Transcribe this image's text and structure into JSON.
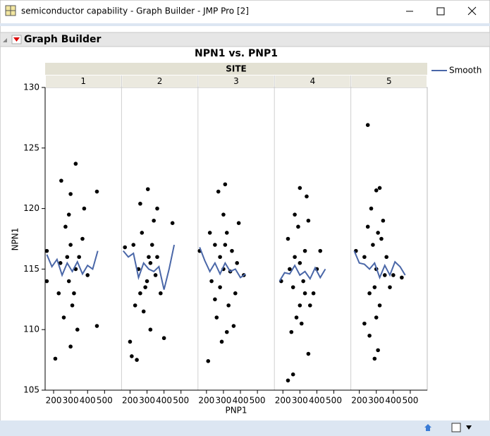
{
  "window": {
    "title": "semiconductor capability - Graph Builder - JMP Pro [2]"
  },
  "outline": {
    "title": "Graph Builder"
  },
  "chart_data": {
    "type": "scatter",
    "title": "NPN1 vs. PNP1",
    "facet_title": "SITE",
    "x_label": "PNP1",
    "y_label": "NPN1",
    "xlim": [
      150,
      600
    ],
    "xticks": [
      200,
      300,
      400,
      500
    ],
    "ylim": [
      105,
      130
    ],
    "yticks": [
      105,
      110,
      115,
      120,
      125,
      130
    ],
    "point_color": "#000000",
    "legend": {
      "name": "Smooth",
      "color": "#4a67a8",
      "position": "right"
    },
    "panels": [
      {
        "label": "1",
        "x": [
          160,
          160,
          210,
          245,
          330,
          300,
          380,
          455,
          455,
          300,
          260,
          270,
          350,
          290,
          320,
          240,
          400,
          310,
          280,
          340,
          370,
          230,
          290,
          330,
          300
        ],
        "y": [
          116.5,
          114,
          107.6,
          122.3,
          123.7,
          121.2,
          120,
          121.4,
          110.3,
          108.6,
          111,
          118.5,
          116,
          114,
          113,
          115.5,
          114.5,
          112,
          116,
          110,
          117.5,
          113,
          119.5,
          115,
          117
        ],
        "smooth_x": [
          160,
          190,
          220,
          250,
          280,
          310,
          340,
          370,
          400,
          430,
          460
        ],
        "smooth_y": [
          116.2,
          115.2,
          115.8,
          114.5,
          115.5,
          114.8,
          115.6,
          114.6,
          115.3,
          115,
          116.5
        ]
      },
      {
        "label": "2",
        "x": [
          170,
          200,
          240,
          210,
          305,
          260,
          360,
          320,
          450,
          400,
          290,
          250,
          330,
          270,
          350,
          230,
          310,
          380,
          280,
          340,
          300,
          220,
          360,
          260,
          320
        ],
        "y": [
          116.8,
          109,
          107.5,
          107.8,
          121.6,
          120.4,
          120,
          110,
          118.8,
          109.3,
          113.5,
          115,
          117,
          118,
          114.5,
          112,
          116,
          113,
          111.5,
          119,
          114,
          117,
          116,
          113,
          115.5
        ],
        "smooth_x": [
          160,
          190,
          220,
          250,
          280,
          310,
          340,
          370,
          400,
          430,
          460
        ],
        "smooth_y": [
          116.5,
          116,
          116.3,
          114.3,
          115.5,
          115,
          114.8,
          115.2,
          113.3,
          115,
          117
        ]
      },
      {
        "label": "3",
        "x": [
          160,
          210,
          310,
          270,
          390,
          420,
          360,
          290,
          250,
          300,
          330,
          280,
          350,
          230,
          320,
          260,
          370,
          300,
          340,
          220,
          280,
          320,
          380,
          250,
          310
        ],
        "y": [
          116.5,
          107.4,
          122,
          121.4,
          118.8,
          114.5,
          110.3,
          109,
          117,
          115,
          112,
          113.5,
          116.5,
          114,
          118,
          111,
          113,
          119.5,
          114.8,
          118,
          116,
          109.8,
          115.5,
          112.5,
          117
        ],
        "smooth_x": [
          160,
          190,
          220,
          250,
          280,
          310,
          340,
          370,
          400,
          430
        ],
        "smooth_y": [
          116.8,
          115.7,
          114.8,
          115.5,
          114.6,
          115.5,
          114.8,
          115,
          114.3,
          114.6
        ]
      },
      {
        "label": "4",
        "x": [
          190,
          230,
          260,
          300,
          340,
          420,
          350,
          250,
          300,
          270,
          320,
          380,
          230,
          290,
          350,
          310,
          260,
          400,
          330,
          280,
          240,
          360,
          300,
          270,
          330
        ],
        "y": [
          114,
          105.8,
          106.3,
          121.7,
          121,
          116.5,
          108,
          109.8,
          112,
          116,
          114,
          113,
          117.5,
          118.5,
          119,
          110.5,
          113.5,
          115,
          116.5,
          111,
          115,
          112,
          115.5,
          119.5,
          113
        ],
        "smooth_x": [
          180,
          210,
          240,
          270,
          300,
          330,
          360,
          390,
          420,
          450
        ],
        "smooth_y": [
          114,
          114.7,
          114.6,
          115.3,
          114.5,
          114.8,
          114.2,
          115.1,
          114.3,
          115
        ]
      },
      {
        "label": "5",
        "x": [
          180,
          250,
          300,
          320,
          400,
          450,
          290,
          310,
          230,
          260,
          280,
          300,
          340,
          360,
          250,
          320,
          380,
          270,
          300,
          350,
          230,
          330,
          290,
          260,
          310
        ],
        "y": [
          116.5,
          126.9,
          121.5,
          121.7,
          114.5,
          114.3,
          107.6,
          108.3,
          110.5,
          113,
          117,
          115,
          119,
          116,
          118.5,
          112,
          113.5,
          120,
          111,
          114.5,
          116,
          117.5,
          113.5,
          109.5,
          118
        ],
        "smooth_x": [
          170,
          200,
          230,
          260,
          290,
          320,
          350,
          380,
          410,
          440,
          470
        ],
        "smooth_y": [
          116.5,
          115.5,
          115.4,
          115,
          115.5,
          114.3,
          115.3,
          114.5,
          115.6,
          115.2,
          114.5
        ]
      }
    ]
  }
}
